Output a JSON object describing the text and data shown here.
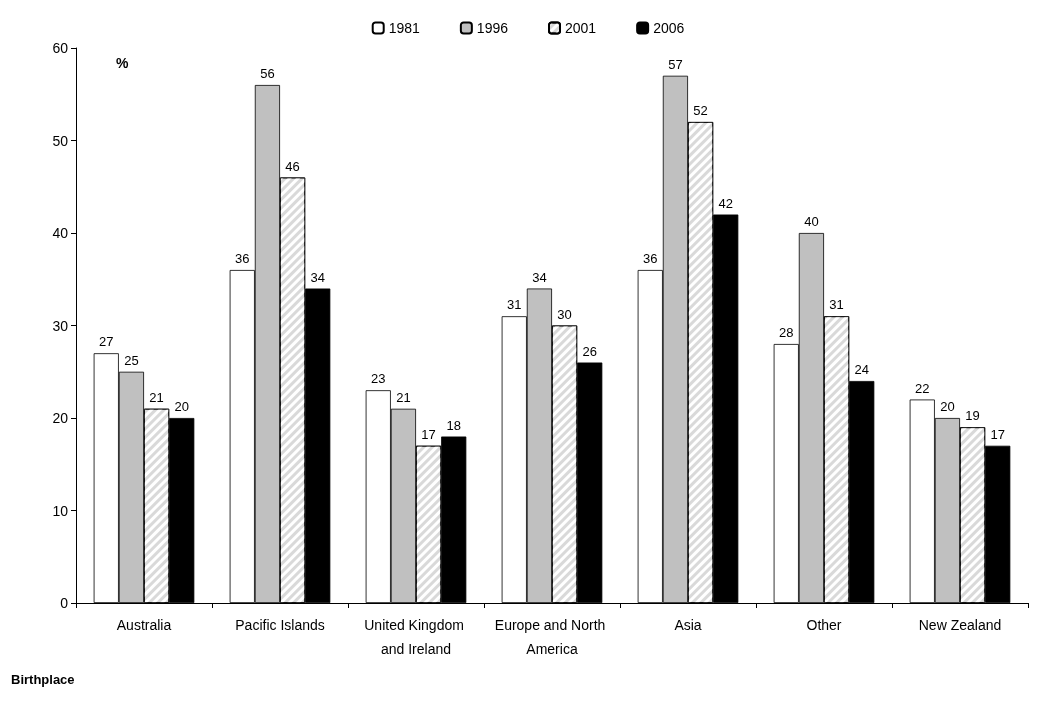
{
  "chart_data": {
    "type": "bar",
    "xlabel": "Birthplace",
    "ylabel": "%",
    "categories": [
      "Australia",
      "Pacific Islands",
      "United Kingdom and Ireland",
      "Europe and North America",
      "Asia",
      "Other",
      "New Zealand"
    ],
    "series": [
      {
        "name": "1981",
        "color": "#ffffff",
        "values": [
          27,
          36,
          23,
          31,
          36,
          28,
          22
        ]
      },
      {
        "name": "1996",
        "color": "#c0c0c0",
        "values": [
          25,
          56,
          21,
          34,
          57,
          40,
          20
        ]
      },
      {
        "name": "2001",
        "color": "#d9d9d9",
        "values": [
          21,
          46,
          17,
          30,
          52,
          31,
          19
        ]
      },
      {
        "name": "2006",
        "color": "#000000",
        "values": [
          20,
          34,
          18,
          26,
          42,
          24,
          17
        ]
      }
    ],
    "ylim": [
      0,
      60
    ],
    "yticks": [
      0,
      10,
      20,
      30,
      40,
      50,
      60
    ],
    "grid": false,
    "legend": "top",
    "data_labels": true
  }
}
